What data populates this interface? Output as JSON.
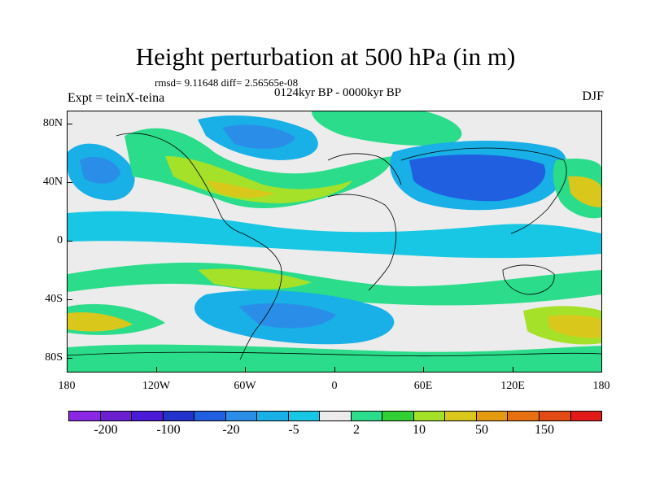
{
  "header": {
    "title": "Height perturbation at 500 hPa (in m)",
    "stats": "rmsd= 9.11648 diff= 2.56565e-08",
    "period": "0124kyr BP - 0000kyr BP",
    "experiment": "Expt = teinX-teina",
    "season": "DJF"
  },
  "map": {
    "lat_labels": [
      "80N",
      "40N",
      "0",
      "40S",
      "80S"
    ],
    "lon_labels": [
      "180",
      "120W",
      "60W",
      "0",
      "60E",
      "120E",
      "180"
    ]
  },
  "colorbar": {
    "colors": [
      "#8a28e6",
      "#6b1fd1",
      "#4a1ad6",
      "#2233cc",
      "#1f5fe0",
      "#2a8ee8",
      "#18b0e6",
      "#17c7e3",
      "#ececec",
      "#2bdc8a",
      "#33d035",
      "#a6e12a",
      "#d9c71b",
      "#e59a10",
      "#e6700f",
      "#e34b14",
      "#e21a1a"
    ],
    "labels": [
      "-200",
      "-100",
      "-20",
      "-5",
      "2",
      "10",
      "50",
      "150"
    ]
  }
}
